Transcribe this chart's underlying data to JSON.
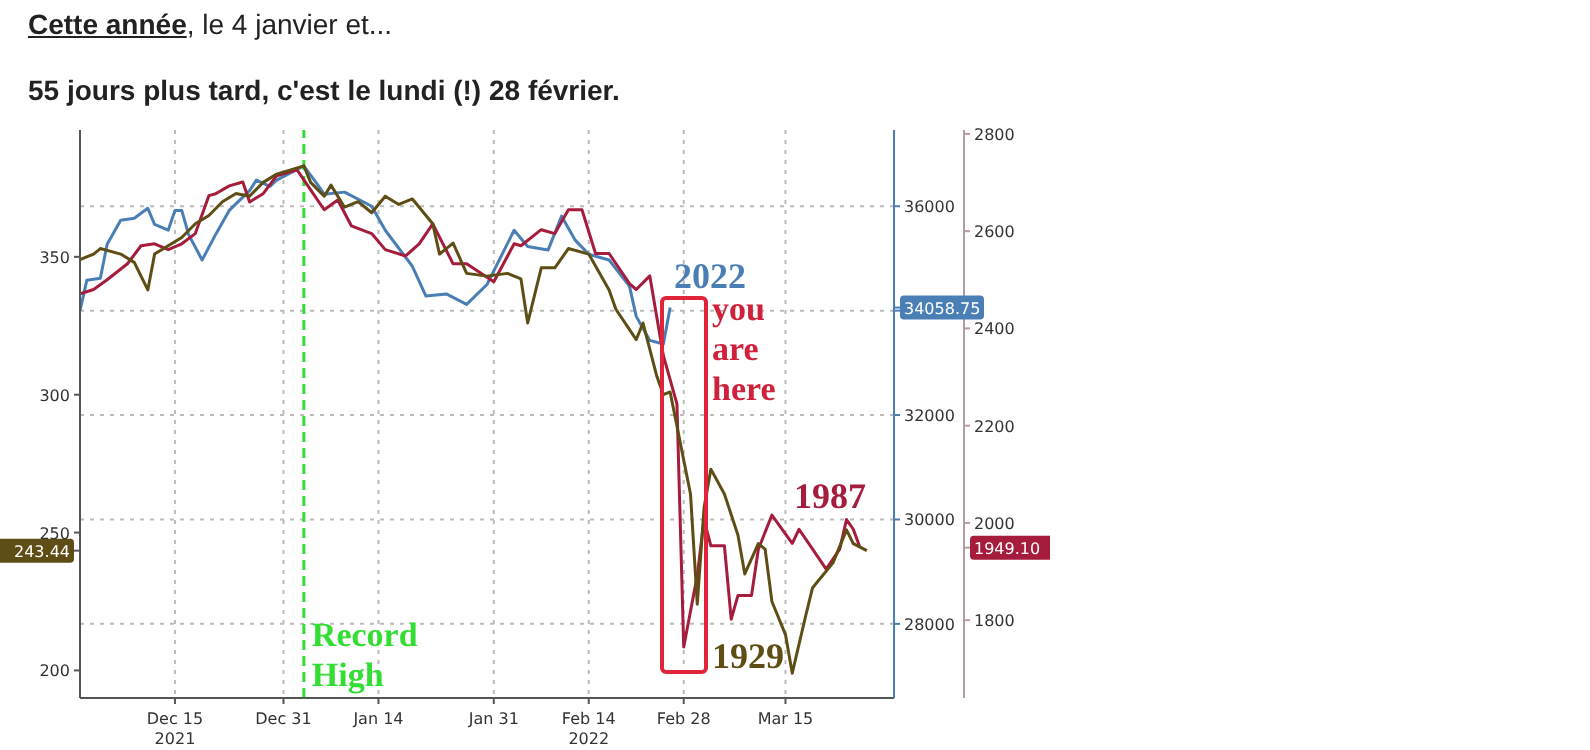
{
  "chart_data": {
    "type": "line",
    "title": "Cette année, le 4 janvier et...",
    "subtitle": "55 jours plus tard, c'est le lundi (!) 28 février.",
    "xlim": [
      "2021-12-01",
      "2022-03-31"
    ],
    "xticks": [
      {
        "value": "2021-12-15",
        "label": "Dec 15\n2021"
      },
      {
        "value": "2021-12-31",
        "label": "Dec 31"
      },
      {
        "value": "2022-01-14",
        "label": "Jan 14"
      },
      {
        "value": "2022-01-31",
        "label": "Jan 31"
      },
      {
        "value": "2022-02-14",
        "label": "Feb 14\n2022"
      },
      {
        "value": "2022-02-28",
        "label": "Feb 28"
      },
      {
        "value": "2022-03-15",
        "label": "Mar 15"
      }
    ],
    "ylim": [
      190,
      396
    ],
    "yticks": [
      200,
      {
        "value": 243.44,
        "label": "243.44"
      },
      250,
      300,
      350
    ],
    "y2lim": [
      26580,
      37460
    ],
    "y2ticks": [
      28000,
      30000,
      32000,
      {
        "value": 34000,
        "label": null
      },
      {
        "value": 34058.75,
        "label": "34058.75"
      },
      36000
    ],
    "y3lim": [
      1640,
      2808
    ],
    "y3ticks": [
      1800,
      {
        "value": 1949.1,
        "label": "1949.10"
      },
      2000,
      2200,
      2400,
      2600,
      2800
    ],
    "grid": true,
    "ref_lines": [
      {
        "axis": "x",
        "value": "2022-01-03",
        "label": "Record High",
        "color": "#33dd33",
        "line_style": "dashed"
      }
    ],
    "annotations": [
      "you are here"
    ],
    "series": [
      {
        "name": "2022",
        "color": "#4a7fb5",
        "axis": "y2",
        "x": [
          "2021-12-01",
          "2021-12-02",
          "2021-12-04",
          "2021-12-05",
          "2021-12-07",
          "2021-12-09",
          "2021-12-11",
          "2021-12-12",
          "2021-12-14",
          "2021-12-15",
          "2021-12-16",
          "2021-12-17",
          "2021-12-19",
          "2021-12-21",
          "2021-12-23",
          "2021-12-26",
          "2021-12-27",
          "2021-12-29",
          "2021-12-30",
          "2022-01-03",
          "2022-01-05",
          "2022-01-06",
          "2022-01-09",
          "2022-01-13",
          "2022-01-15",
          "2022-01-19",
          "2022-01-21",
          "2022-01-24",
          "2022-01-27",
          "2022-01-30",
          "2022-02-03",
          "2022-02-05",
          "2022-02-08",
          "2022-02-10",
          "2022-02-12",
          "2022-02-14",
          "2022-02-17",
          "2022-02-20",
          "2022-02-21",
          "2022-02-23",
          "2022-02-25",
          "2022-02-26"
        ],
        "values": [
          34000,
          34580,
          34620,
          35270,
          35730,
          35770,
          35960,
          35650,
          35540,
          35920,
          35920,
          35460,
          34970,
          35460,
          35920,
          36300,
          36500,
          36380,
          36500,
          36770,
          36420,
          36230,
          36270,
          36000,
          35540,
          34850,
          34280,
          34320,
          34120,
          34500,
          35540,
          35230,
          35160,
          35810,
          35350,
          35080,
          34970,
          34470,
          33890,
          33430,
          33360,
          34058.75
        ]
      },
      {
        "name": "1987",
        "color": "#a51c3c",
        "axis": "y3",
        "x": [
          "2021-12-01",
          "2021-12-03",
          "2021-12-05",
          "2021-12-08",
          "2021-12-10",
          "2021-12-12",
          "2021-12-14",
          "2021-12-16",
          "2021-12-18",
          "2021-12-20",
          "2021-12-21",
          "2021-12-23",
          "2021-12-25",
          "2021-12-26",
          "2021-12-28",
          "2021-12-30",
          "2022-01-02",
          "2022-01-04",
          "2022-01-06",
          "2022-01-08",
          "2022-01-10",
          "2022-01-13",
          "2022-01-15",
          "2022-01-18",
          "2022-01-20",
          "2022-01-22",
          "2022-01-25",
          "2022-01-27",
          "2022-01-31",
          "2022-02-03",
          "2022-02-04",
          "2022-02-07",
          "2022-02-09",
          "2022-02-11",
          "2022-02-13",
          "2022-02-15",
          "2022-02-17",
          "2022-02-20",
          "2022-02-21",
          "2022-02-23",
          "2022-02-25",
          "2022-02-27",
          "2022-02-28",
          "2022-03-02",
          "2022-03-03",
          "2022-03-04",
          "2022-03-06",
          "2022-03-07",
          "2022-03-08",
          "2022-03-10",
          "2022-03-11",
          "2022-03-13",
          "2022-03-16",
          "2022-03-17",
          "2022-03-19",
          "2022-03-21",
          "2022-03-23",
          "2022-03-24",
          "2022-03-25",
          "2022-03-26"
        ],
        "values": [
          2471,
          2480,
          2500,
          2533,
          2570,
          2574,
          2562,
          2574,
          2595,
          2673,
          2677,
          2693,
          2701,
          2660,
          2677,
          2714,
          2726,
          2685,
          2644,
          2664,
          2611,
          2595,
          2562,
          2549,
          2574,
          2615,
          2533,
          2533,
          2496,
          2574,
          2570,
          2603,
          2595,
          2644,
          2644,
          2554,
          2554,
          2492,
          2480,
          2508,
          2344,
          2245,
          1745,
          1892,
          2007,
          1953,
          1953,
          1802,
          1851,
          1851,
          1946,
          2016,
          1958,
          1987,
          1946,
          1905,
          1946,
          2007,
          1987,
          1949.1
        ]
      },
      {
        "name": "1929",
        "color": "#5e4d14",
        "x": [
          "2021-12-01",
          "2021-12-03",
          "2021-12-04",
          "2021-12-07",
          "2021-12-09",
          "2021-12-11",
          "2021-12-12",
          "2021-12-14",
          "2021-12-16",
          "2021-12-18",
          "2021-12-20",
          "2021-12-22",
          "2021-12-24",
          "2021-12-26",
          "2021-12-28",
          "2021-12-30",
          "2022-01-03",
          "2022-01-04",
          "2022-01-06",
          "2022-01-07",
          "2022-01-09",
          "2022-01-11",
          "2022-01-13",
          "2022-01-15",
          "2022-01-17",
          "2022-01-19",
          "2022-01-22",
          "2022-01-23",
          "2022-01-25",
          "2022-01-27",
          "2022-01-30",
          "2022-02-02",
          "2022-02-04",
          "2022-02-05",
          "2022-02-07",
          "2022-02-09",
          "2022-02-11",
          "2022-02-14",
          "2022-02-17",
          "2022-02-18",
          "2022-02-21",
          "2022-02-22",
          "2022-02-24",
          "2022-02-25",
          "2022-02-26",
          "2022-03-01",
          "2022-03-02",
          "2022-03-03",
          "2022-03-04",
          "2022-03-06",
          "2022-03-08",
          "2022-03-09",
          "2022-03-11",
          "2022-03-12",
          "2022-03-13",
          "2022-03-15",
          "2022-03-16",
          "2022-03-18",
          "2022-03-19",
          "2022-03-22",
          "2022-03-24",
          "2022-03-25",
          "2022-03-27"
        ],
        "values": [
          349,
          351,
          353,
          351,
          348,
          338,
          351,
          354,
          357,
          362,
          365,
          370,
          373,
          372,
          377,
          380,
          383,
          377,
          372,
          376,
          368,
          370,
          366,
          372,
          369,
          371,
          362,
          351,
          355,
          344,
          343,
          344,
          342,
          326,
          346,
          346,
          353,
          351,
          338,
          331,
          320,
          326,
          307,
          300,
          301,
          264,
          224,
          259,
          273,
          264,
          249,
          235,
          246,
          244,
          225,
          213,
          199,
          220,
          230,
          239,
          251,
          246,
          243.44
        ]
      }
    ]
  }
}
